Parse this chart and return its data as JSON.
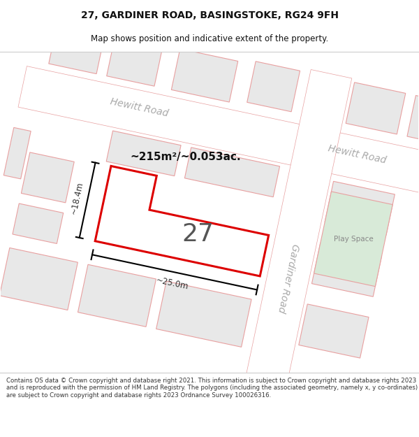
{
  "title_line1": "27, GARDINER ROAD, BASINGSTOKE, RG24 9FH",
  "title_line2": "Map shows position and indicative extent of the property.",
  "footer_text": "Contains OS data © Crown copyright and database right 2021. This information is subject to Crown copyright and database rights 2023 and is reproduced with the permission of HM Land Registry. The polygons (including the associated geometry, namely x, y co-ordinates) are subject to Crown copyright and database rights 2023 Ordnance Survey 100026316.",
  "map_bg": "#f5f4f2",
  "building_fill": "#e8e8e8",
  "building_edge": "#e8a0a0",
  "road_fill": "#ffffff",
  "road_edge": "#e8a0a0",
  "highlight_fill": "#ffffff",
  "highlight_edge": "#dd0000",
  "play_fill": "#d8ead8",
  "play_edge": "#e8a0a0",
  "road_label_color": "#aaaaaa",
  "plot_label_color": "#555555",
  "dim_color": "#333333",
  "area_color": "#111111",
  "plot_number": "27",
  "area_text": "~215m²/~0.053ac.",
  "dim_height": "~18.4m",
  "dim_width": "~25.0m",
  "play_space_label": "Play Space",
  "hewitt_road_label": "Hewitt Road",
  "gardiner_road_label": "Gardiner Road",
  "title_fontsize": 10,
  "subtitle_fontsize": 8.5,
  "footer_fontsize": 6.2
}
